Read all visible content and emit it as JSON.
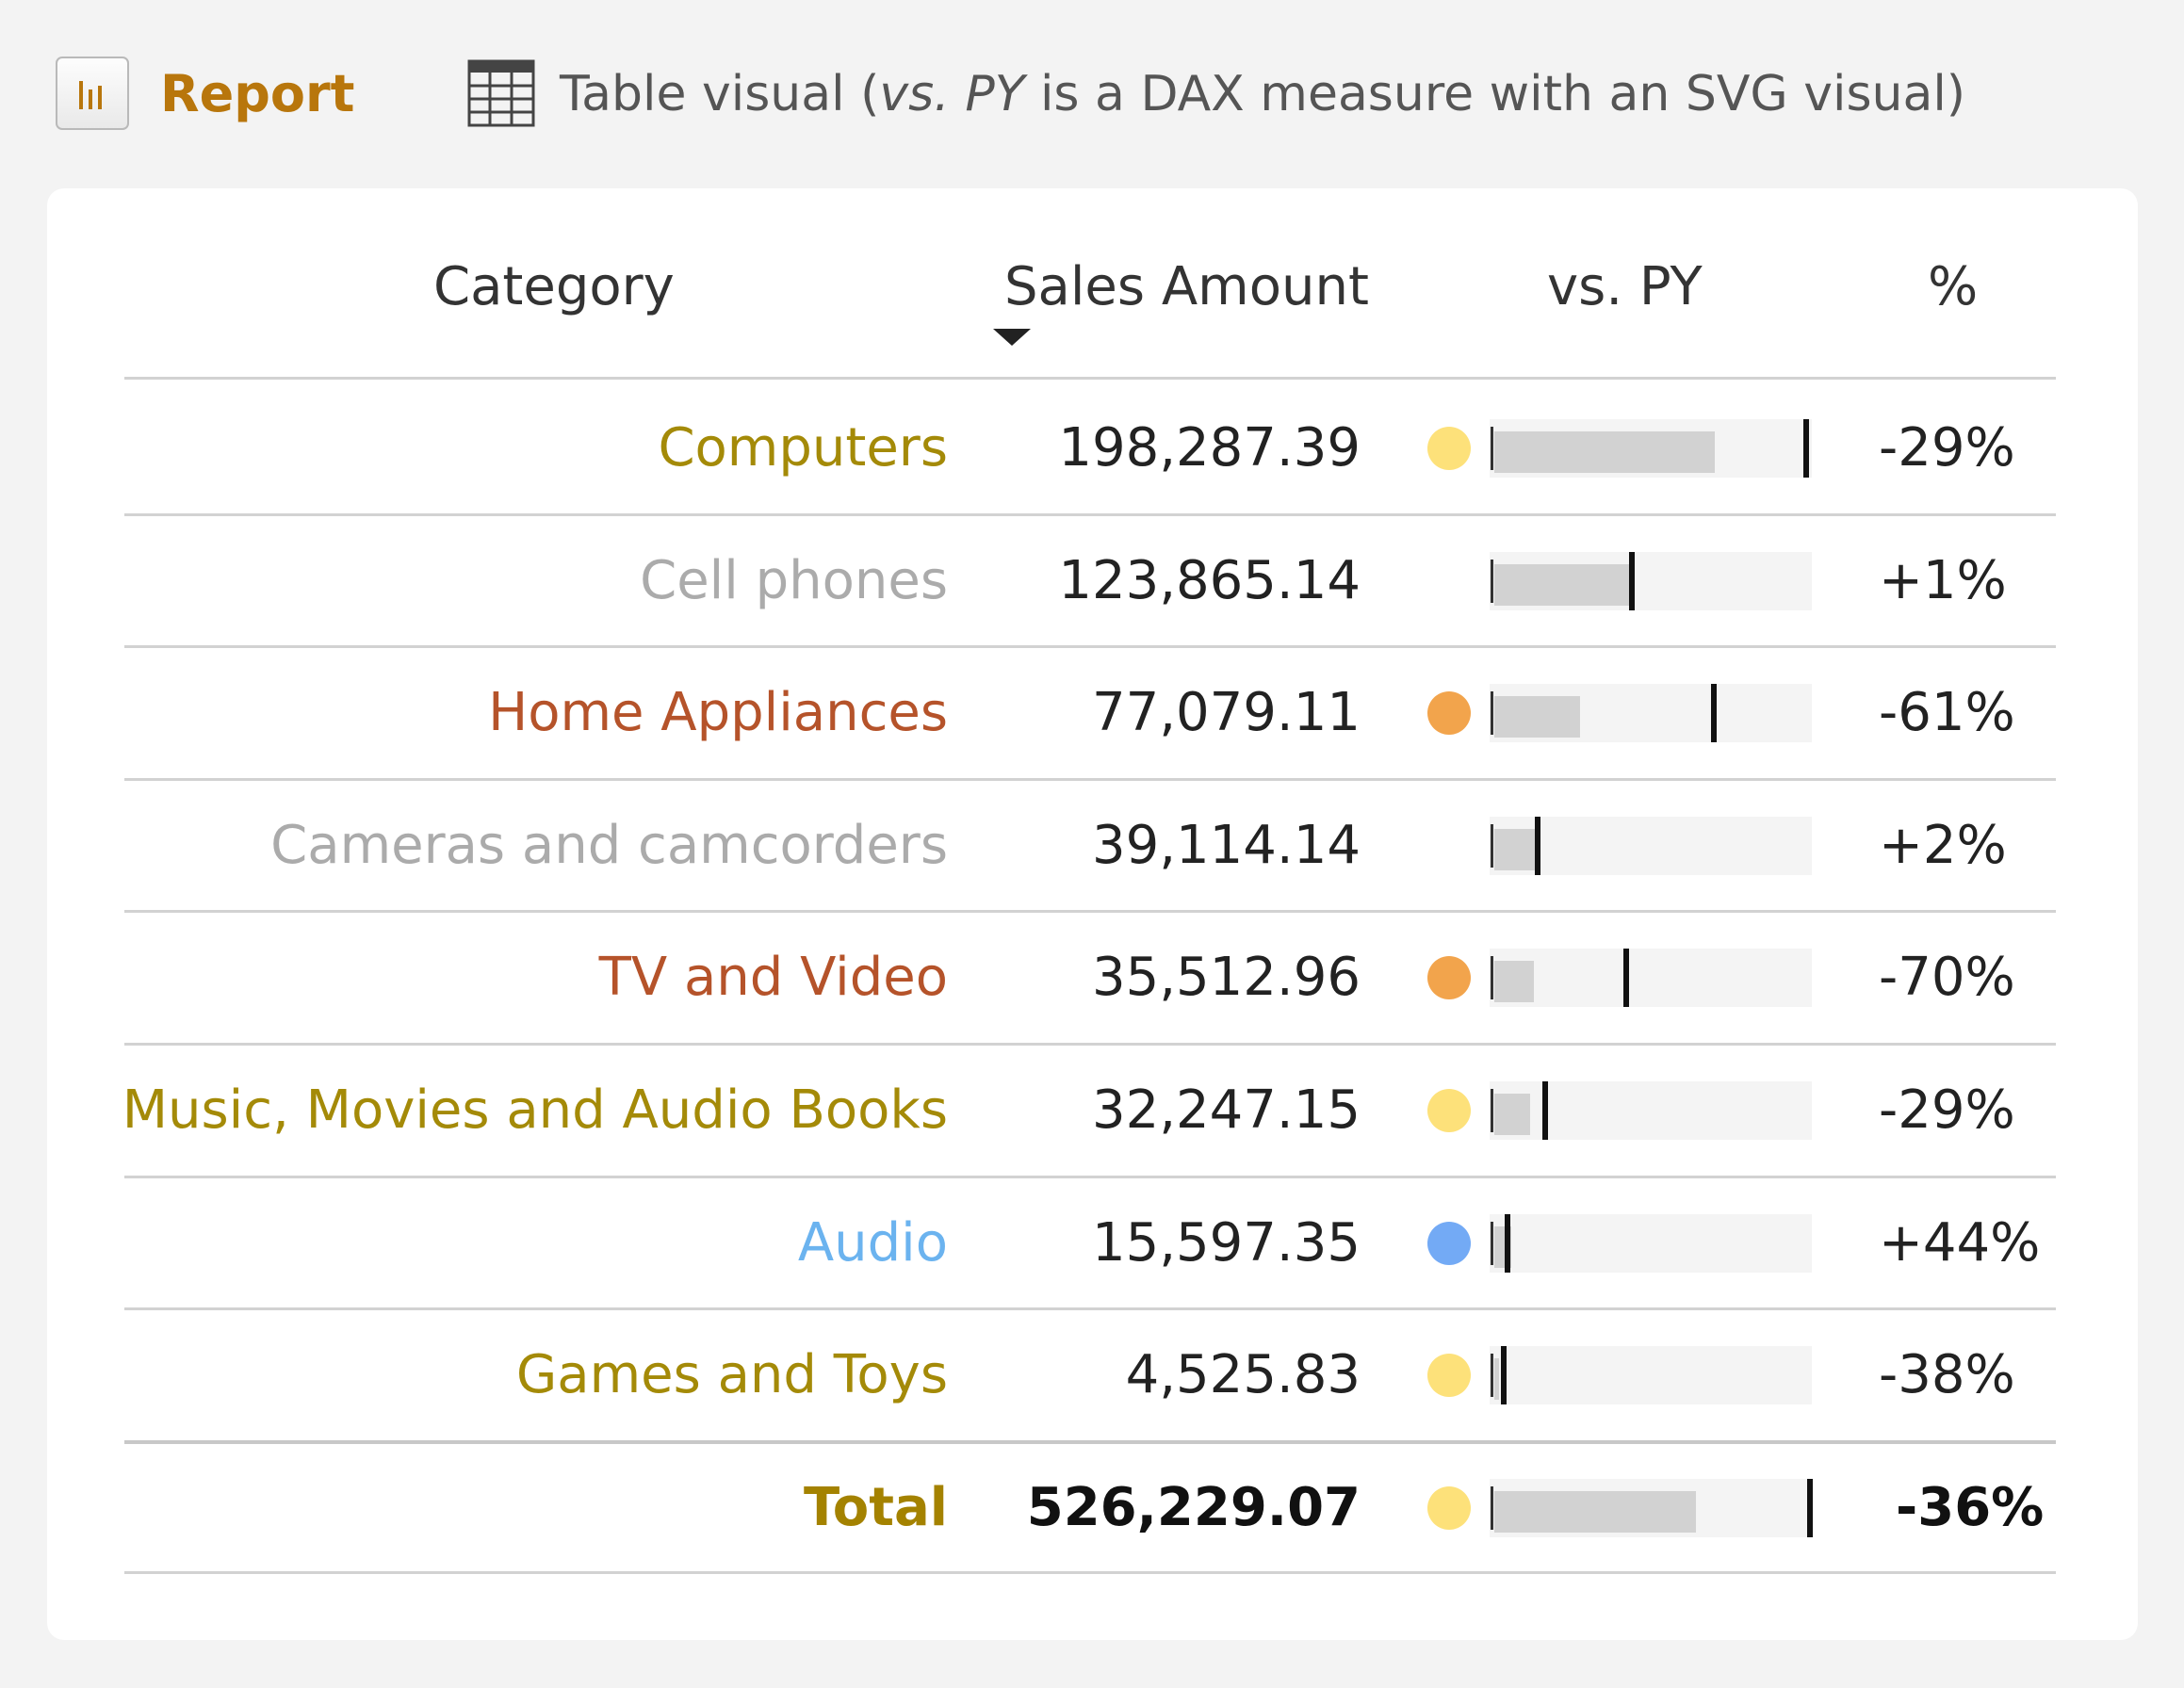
{
  "toolbar": {
    "report_label": "Report",
    "caption_prefix": "Table visual (",
    "caption_em1": "vs. PY",
    "caption_mid": " is a DAX measure with an SVG visual)"
  },
  "table": {
    "headers": {
      "category": "Category",
      "sales": "Sales Amount",
      "vspy": "vs. PY",
      "pct": "%"
    },
    "sorted_by": "Sales Amount",
    "bar_scale_max": 287000,
    "rows": [
      {
        "category": "Computers",
        "sales": "198,287.39",
        "pct": "-29%",
        "cat_color": "#a48a08",
        "dot_color": "#fde17a",
        "current": 198287,
        "previous": 280000
      },
      {
        "category": "Cell phones",
        "sales": "123,865.14",
        "pct": "+1%",
        "cat_color": "#ababab",
        "dot_color": "",
        "current": 123865,
        "previous": 122700
      },
      {
        "category": "Home Appliances",
        "sales": "77,079.11",
        "pct": "-61%",
        "cat_color": "#b5532a",
        "dot_color": "#f2a44c",
        "current": 77079,
        "previous": 197000
      },
      {
        "category": "Cameras and camcorders",
        "sales": "39,114.14",
        "pct": "+2%",
        "cat_color": "#ababab",
        "dot_color": "",
        "current": 39114,
        "previous": 38300
      },
      {
        "category": "TV and Video",
        "sales": "35,512.96",
        "pct": "-70%",
        "cat_color": "#b5532a",
        "dot_color": "#f2a44c",
        "current": 35513,
        "previous": 118400
      },
      {
        "category": "Music, Movies and Audio Books",
        "sales": "32,247.15",
        "pct": "-29%",
        "cat_color": "#a48a08",
        "dot_color": "#fde17a",
        "current": 32247,
        "previous": 45400
      },
      {
        "category": "Audio",
        "sales": "15,597.35",
        "pct": "+44%",
        "cat_color": "#6bb3ef",
        "dot_color": "#73aaf5",
        "current": 15597,
        "previous": 10830
      },
      {
        "category": "Games and Toys",
        "sales": "4,525.83",
        "pct": "-38%",
        "cat_color": "#a48a08",
        "dot_color": "#fde17a",
        "current": 4526,
        "previous": 7300
      }
    ],
    "total": {
      "category": "Total",
      "sales": "526,229.07",
      "pct": "-36%",
      "dot_color": "#fde17a",
      "current": 526229,
      "previous": 822000,
      "bar_scale_max": 832000
    }
  }
}
